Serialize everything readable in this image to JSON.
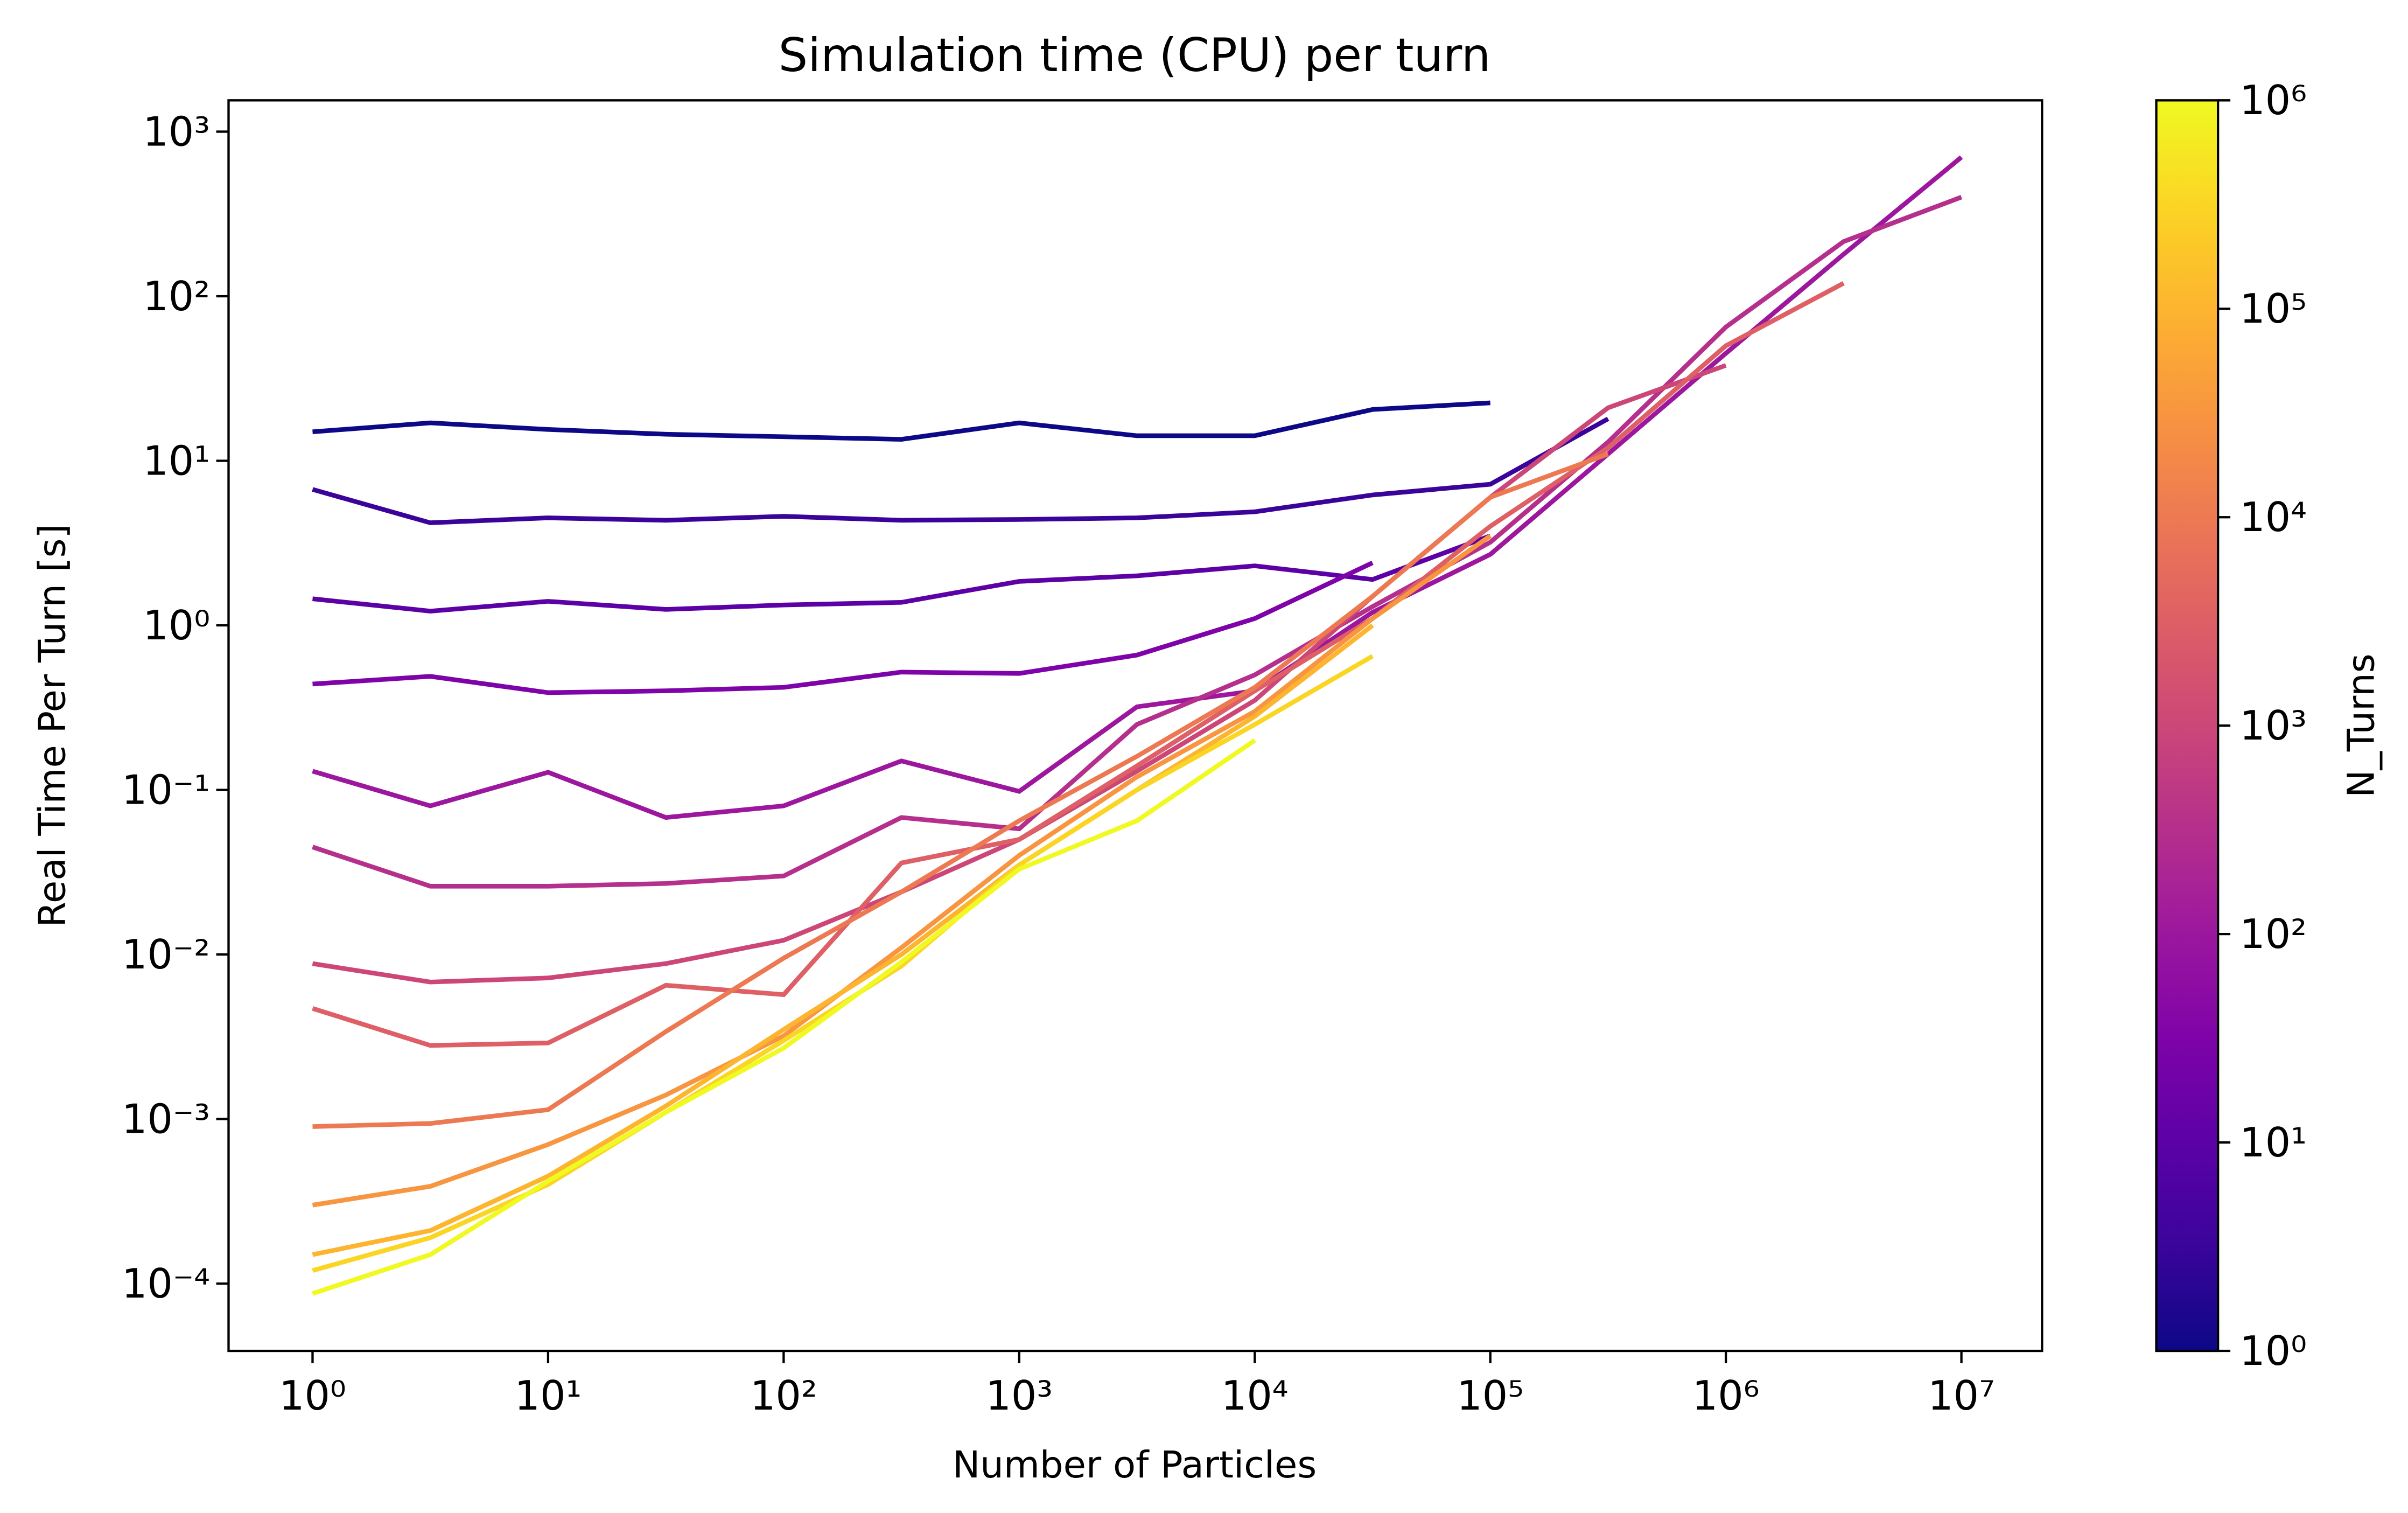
{
  "chart_data": {
    "type": "line",
    "title": "Simulation time (CPU) per turn",
    "xlabel": "Number of Particles",
    "ylabel": "Real Time Per Turn [s]",
    "xscale": "log",
    "yscale": "log",
    "xlim": [
      0.44,
      22000000
    ],
    "ylim": [
      3.9e-05,
      1550
    ],
    "xticks": [
      {
        "value": 1,
        "label": "10⁰"
      },
      {
        "value": 10,
        "label": "10¹"
      },
      {
        "value": 100,
        "label": "10²"
      },
      {
        "value": 1000,
        "label": "10³"
      },
      {
        "value": 10000,
        "label": "10⁴"
      },
      {
        "value": 100000,
        "label": "10⁵"
      },
      {
        "value": 1000000,
        "label": "10⁶"
      },
      {
        "value": 10000000,
        "label": "10⁷"
      }
    ],
    "yticks": [
      {
        "value": 0.0001,
        "label": "10⁻⁴"
      },
      {
        "value": 0.001,
        "label": "10⁻³"
      },
      {
        "value": 0.01,
        "label": "10⁻²"
      },
      {
        "value": 0.1,
        "label": "10⁻¹"
      },
      {
        "value": 1,
        "label": "10⁰"
      },
      {
        "value": 10,
        "label": "10¹"
      },
      {
        "value": 100,
        "label": "10²"
      },
      {
        "value": 1000,
        "label": "10³"
      }
    ],
    "series": [
      {
        "color": "#0d0887",
        "x": [
          1,
          3.162,
          10,
          31.62,
          100,
          316.2,
          1000,
          3162,
          10000,
          31620,
          100000
        ],
        "values": [
          15,
          17,
          15.5,
          14.5,
          14,
          13.5,
          17,
          14.2,
          14.2,
          20.5,
          22.5
        ]
      },
      {
        "color": "#3a049a",
        "x": [
          1,
          3.162,
          10,
          31.62,
          100,
          316.2,
          1000,
          3162,
          10000,
          31620,
          100000,
          316200
        ],
        "values": [
          6.7,
          4.2,
          4.5,
          4.35,
          4.6,
          4.35,
          4.4,
          4.5,
          4.9,
          6.2,
          7.2,
          18
        ]
      },
      {
        "color": "#5c01a6",
        "x": [
          1,
          3.162,
          10,
          31.62,
          100,
          316.2,
          1000,
          3162,
          10000,
          31620,
          100000
        ],
        "values": [
          1.45,
          1.22,
          1.4,
          1.25,
          1.33,
          1.38,
          1.85,
          2.0,
          2.3,
          1.9,
          3.5
        ]
      },
      {
        "color": "#7e03a8",
        "x": [
          1,
          3.162,
          10,
          31.62,
          100,
          316.2,
          1000,
          3162,
          10000,
          31620
        ],
        "values": [
          0.44,
          0.49,
          0.39,
          0.4,
          0.42,
          0.52,
          0.51,
          0.66,
          1.1,
          2.4
        ]
      },
      {
        "color": "#9c179e",
        "x": [
          1,
          3.162,
          10,
          31.62,
          100,
          316.2,
          1000,
          3162,
          10000,
          31620,
          100000,
          316200,
          1000000,
          3162000,
          10000000
        ],
        "values": [
          0.13,
          0.08,
          0.128,
          0.068,
          0.08,
          0.15,
          0.098,
          0.32,
          0.4,
          1.2,
          2.7,
          11,
          45,
          180,
          700
        ]
      },
      {
        "color": "#b52f8c",
        "x": [
          1,
          3.162,
          10,
          31.62,
          100,
          316.2,
          1000,
          3162,
          10000,
          31620,
          100000,
          316200,
          1000000,
          3162000,
          10000000
        ],
        "values": [
          0.045,
          0.026,
          0.026,
          0.027,
          0.03,
          0.068,
          0.058,
          0.25,
          0.5,
          1.3,
          3.2,
          13,
          65,
          215,
          400
        ]
      },
      {
        "color": "#cc4778",
        "x": [
          1,
          3.162,
          10,
          31.62,
          100,
          316.2,
          1000,
          3162,
          10000,
          31620,
          100000,
          316200,
          1000000
        ],
        "values": [
          0.0088,
          0.0068,
          0.0072,
          0.0088,
          0.0122,
          0.024,
          0.05,
          0.13,
          0.35,
          1.5,
          6,
          21,
          38
        ]
      },
      {
        "color": "#de5f65",
        "x": [
          1,
          3.162,
          10,
          31.62,
          100,
          316.2,
          1000,
          3162,
          10000,
          31620,
          100000,
          316200,
          1000000,
          3162000
        ],
        "values": [
          0.0047,
          0.0028,
          0.0029,
          0.0065,
          0.0057,
          0.036,
          0.05,
          0.14,
          0.4,
          1.1,
          4,
          12,
          50,
          120
        ]
      },
      {
        "color": "#ed7953",
        "x": [
          1,
          3.162,
          10,
          31.62,
          100,
          316.2,
          1000,
          3162,
          10000,
          31620,
          100000,
          316200
        ],
        "values": [
          0.0009,
          0.00094,
          0.00114,
          0.0034,
          0.0095,
          0.024,
          0.065,
          0.16,
          0.42,
          1.5,
          6,
          11
        ]
      },
      {
        "color": "#f89540",
        "x": [
          1,
          3.162,
          10,
          31.62,
          100,
          316.2,
          1000,
          3162,
          10000,
          31620,
          100000
        ],
        "values": [
          0.0003,
          0.00039,
          0.0007,
          0.0014,
          0.0032,
          0.011,
          0.04,
          0.12,
          0.3,
          1.1,
          3.5
        ]
      },
      {
        "color": "#fdb42f",
        "x": [
          1,
          3.162,
          10,
          31.62,
          100,
          316.2,
          1000,
          3162,
          10000,
          31620
        ],
        "values": [
          0.00015,
          0.00021,
          0.00045,
          0.0012,
          0.0035,
          0.01,
          0.035,
          0.1,
          0.28,
          1.0
        ]
      },
      {
        "color": "#fbd524",
        "x": [
          1,
          3.162,
          10,
          31.62,
          100,
          316.2,
          1000,
          3162,
          10000,
          31620
        ],
        "values": [
          0.00012,
          0.00019,
          0.0004,
          0.0011,
          0.003,
          0.0085,
          0.035,
          0.1,
          0.25,
          0.65
        ]
      },
      {
        "color": "#f0f921",
        "x": [
          1,
          3.162,
          10,
          31.62,
          100,
          316.2,
          1000,
          3162,
          10000
        ],
        "values": [
          8.7e-05,
          0.00015,
          0.00042,
          0.0011,
          0.0027,
          0.009,
          0.033,
          0.065,
          0.2
        ]
      }
    ],
    "colorbar": {
      "label": "N_Turns",
      "scale": "log",
      "lim": [
        1,
        1000000
      ],
      "ticks": [
        {
          "value": 1,
          "label": "10⁰"
        },
        {
          "value": 10,
          "label": "10¹"
        },
        {
          "value": 100,
          "label": "10²"
        },
        {
          "value": 1000,
          "label": "10³"
        },
        {
          "value": 10000,
          "label": "10⁴"
        },
        {
          "value": 100000,
          "label": "10⁵"
        },
        {
          "value": 1000000,
          "label": "10⁶"
        }
      ],
      "colors": [
        "#0d0887",
        "#3a049a",
        "#5c01a6",
        "#7e03a8",
        "#9c179e",
        "#b52f8c",
        "#cc4778",
        "#de5f65",
        "#ed7953",
        "#f89540",
        "#fdb42f",
        "#fbd524",
        "#f0f921"
      ]
    }
  }
}
